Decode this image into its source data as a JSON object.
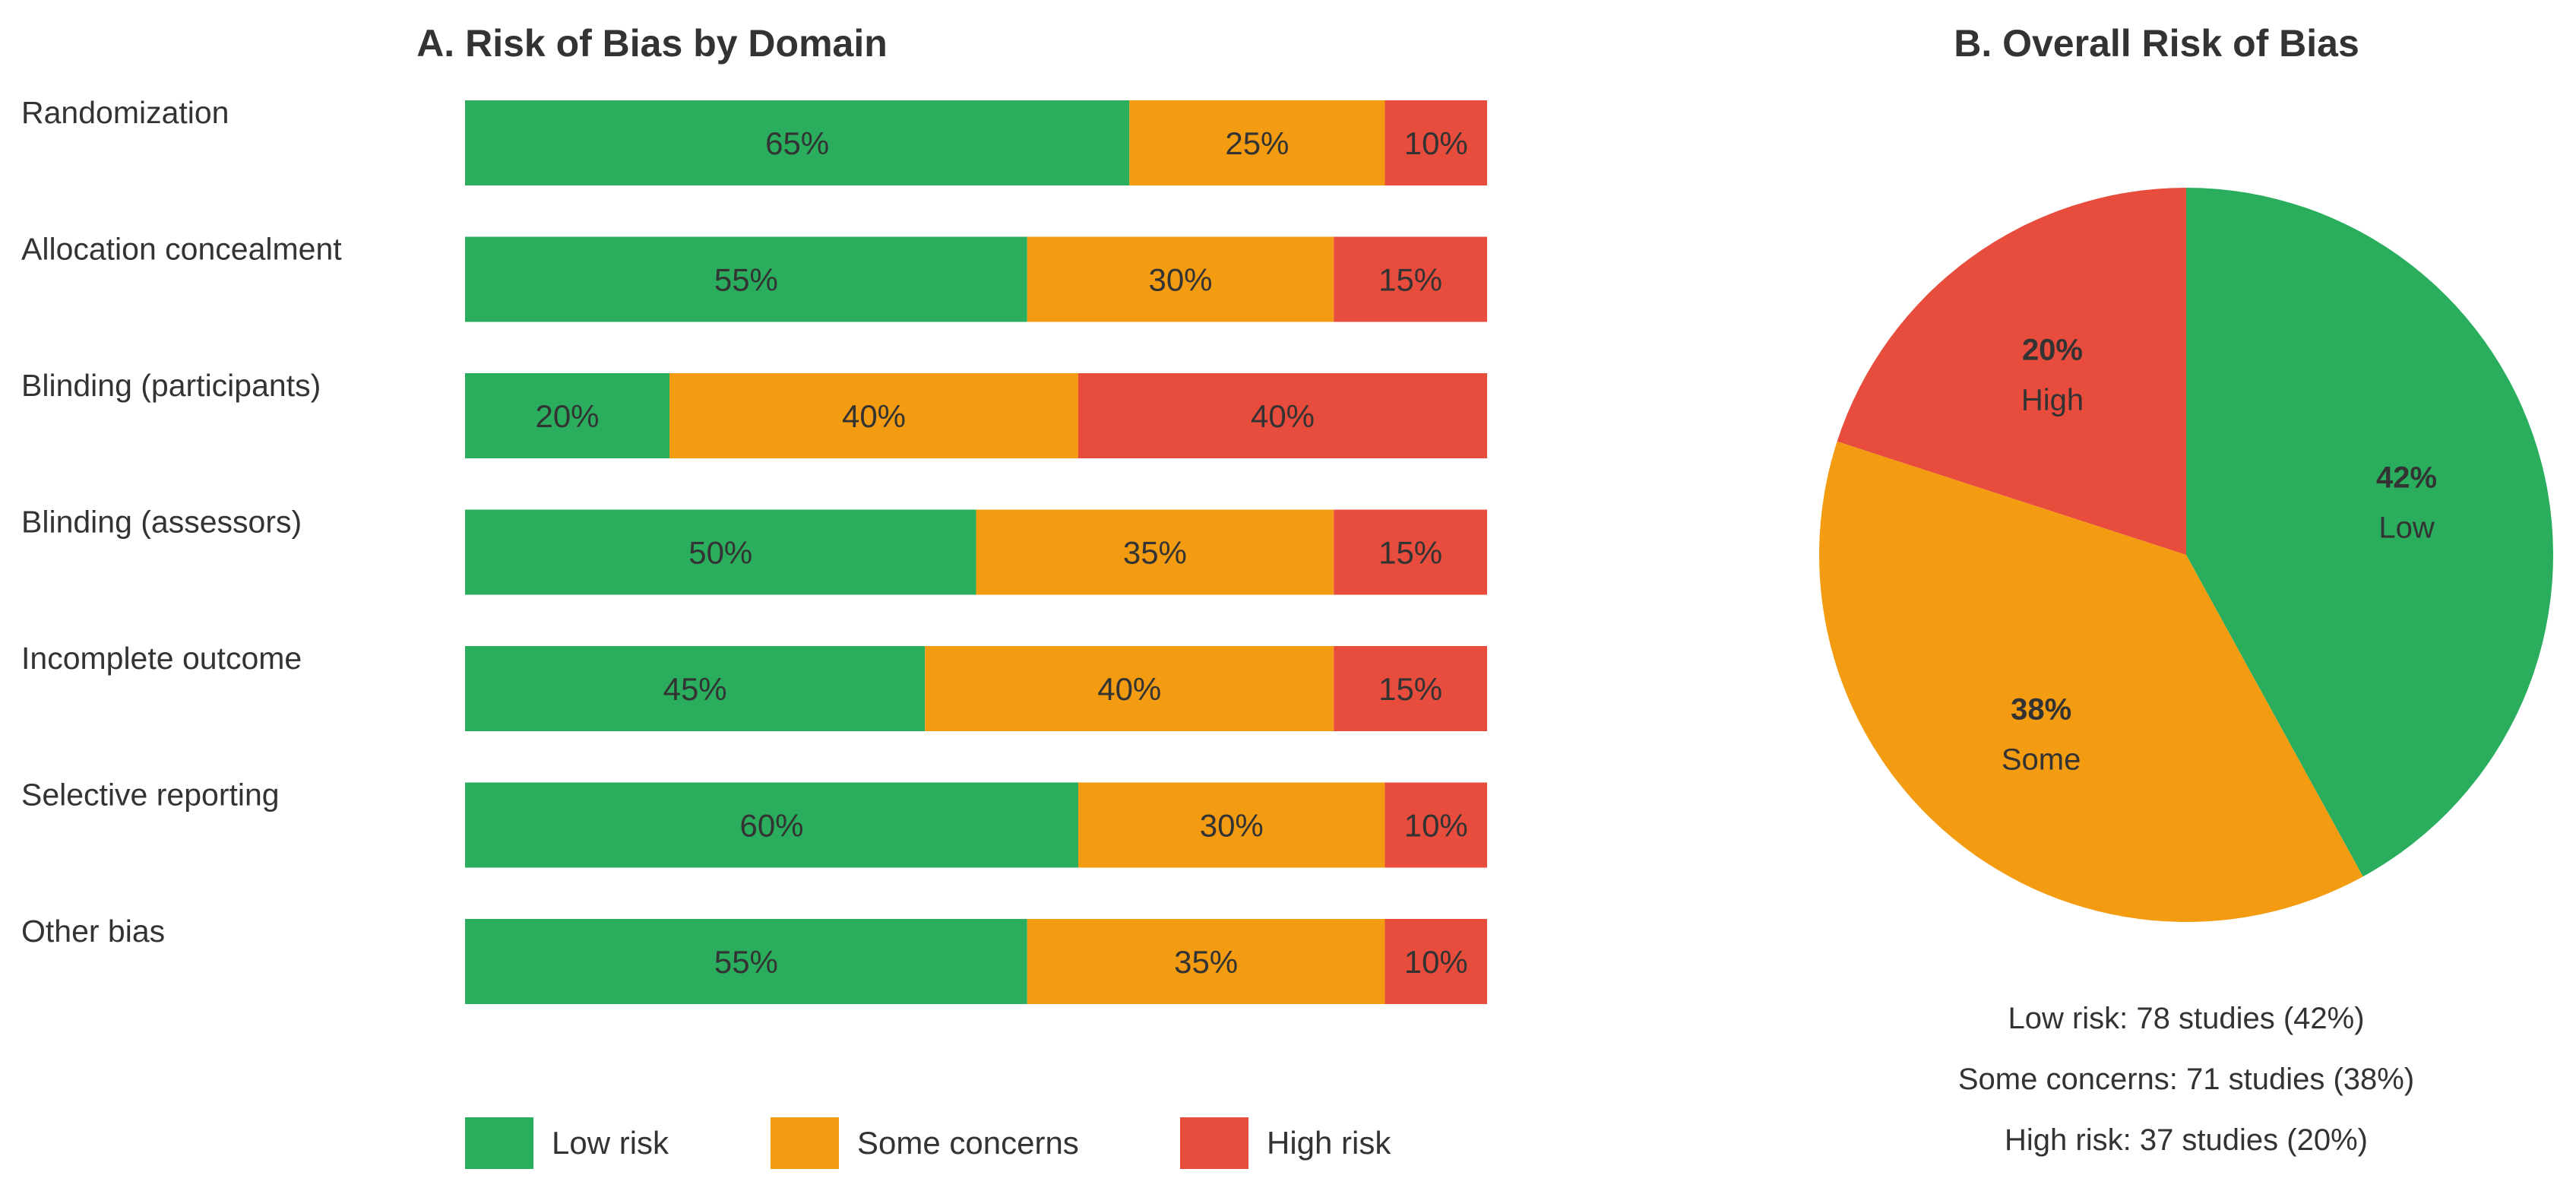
{
  "colors": {
    "low": "#2AAE5E",
    "some": "#F39C12",
    "high": "#E74C3C"
  },
  "chart_data": [
    {
      "type": "bar",
      "orientation": "horizontal",
      "stacked": true,
      "title": "A. Risk of Bias by Domain",
      "categories": [
        "Randomization",
        "Allocation concealment",
        "Blinding (participants)",
        "Blinding (assessors)",
        "Incomplete outcome",
        "Selective reporting",
        "Other bias"
      ],
      "series": [
        {
          "name": "Low risk",
          "color_key": "low",
          "values": [
            65,
            55,
            20,
            50,
            45,
            60,
            55
          ]
        },
        {
          "name": "Some concerns",
          "color_key": "some",
          "values": [
            25,
            30,
            40,
            35,
            40,
            30,
            35
          ]
        },
        {
          "name": "High risk",
          "color_key": "high",
          "values": [
            10,
            15,
            40,
            15,
            15,
            10,
            10
          ]
        }
      ],
      "unit": "%",
      "xlim": [
        0,
        100
      ],
      "legend_position": "bottom",
      "grid": false
    },
    {
      "type": "pie",
      "title": "B. Overall Risk of Bias",
      "slices": [
        {
          "label": "Low",
          "value": 42,
          "pct_label": "42%",
          "color_key": "low"
        },
        {
          "label": "Some",
          "value": 38,
          "pct_label": "38%",
          "color_key": "some"
        },
        {
          "label": "High",
          "value": 20,
          "pct_label": "20%",
          "color_key": "high"
        }
      ],
      "summary": [
        "Low risk: 78 studies (42%)",
        "Some concerns: 71 studies (38%)",
        "High risk: 37 studies (20%)"
      ]
    }
  ]
}
